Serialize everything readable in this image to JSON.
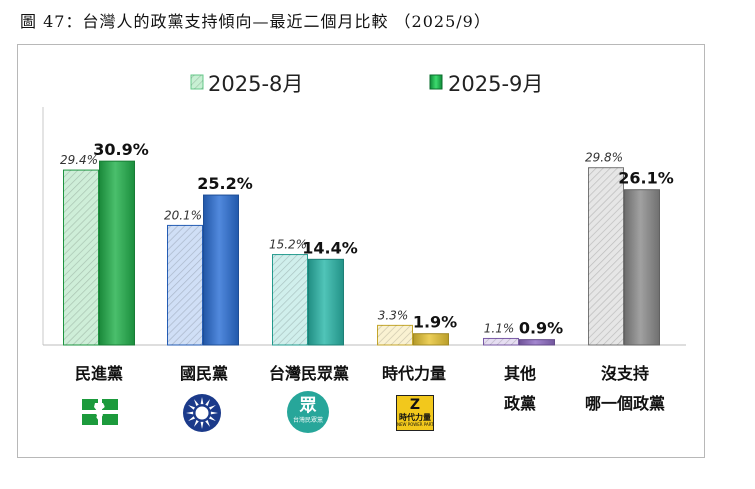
{
  "figure": {
    "title": "圖 47：台灣人的政黨支持傾向—最近二個月比較 （2025/9）"
  },
  "chart_data": {
    "type": "bar",
    "series": [
      {
        "name": "2025-8月",
        "values": [
          29.4,
          20.1,
          15.2,
          3.3,
          1.1,
          29.8
        ]
      },
      {
        "name": "2025-9月",
        "values": [
          30.9,
          25.2,
          14.4,
          1.9,
          0.9,
          26.1
        ]
      }
    ],
    "value_labels": [
      [
        "29.4%",
        "20.1%",
        "15.2%",
        "3.3%",
        "1.1%",
        "29.8%"
      ],
      [
        "30.9%",
        "25.2%",
        "14.4%",
        "1.9%",
        "0.9%",
        "26.1%"
      ]
    ],
    "categories": [
      {
        "line1": "民進黨",
        "line2": ""
      },
      {
        "line1": "國民黨",
        "line2": ""
      },
      {
        "line1": "台灣民眾黨",
        "line2": ""
      },
      {
        "line1": "時代力量",
        "line2": ""
      },
      {
        "line1": "其他",
        "line2": "政黨"
      },
      {
        "line1": "沒支持",
        "line2": "哪一個政黨"
      }
    ],
    "category_colors": [
      "#22b14c",
      "#2b6fd6",
      "#2ab7a9",
      "#e8c534",
      "#8f6bc4",
      "#8c8c8c"
    ],
    "ylim": [
      0,
      40
    ],
    "legend_position": "top-center",
    "grid": false
  },
  "logos": {
    "dpp": "dpp-logo-icon",
    "kmt": "kmt-sun-logo-icon",
    "tpp": "tpp-logo-icon",
    "tpp_text": "眾",
    "tpp_subtext": "台灣民眾黨",
    "npp": "npp-logo-icon",
    "npp_text": "時代力量",
    "npp_subtext": "NEW POWER PARTY"
  }
}
